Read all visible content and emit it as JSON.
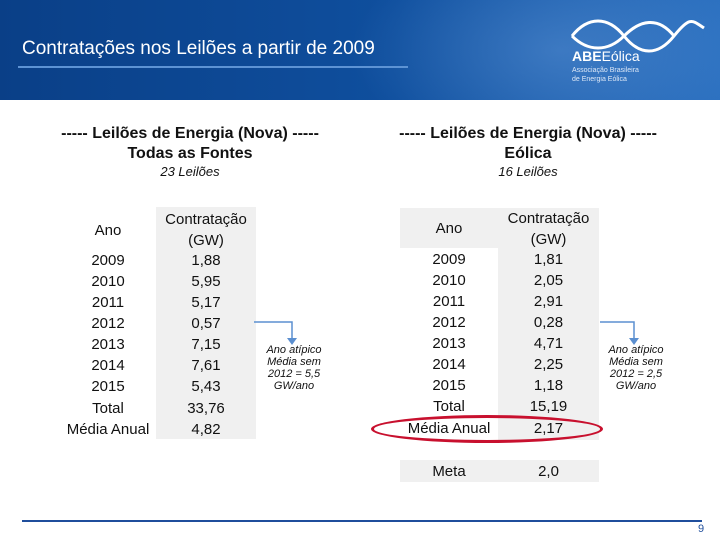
{
  "slide": {
    "title": "Contratações nos Leilões a partir de 2009",
    "page_number": "9"
  },
  "logo": {
    "name_bold": "ABE",
    "name_light": "Eólica",
    "subtitle_line1": "Associação Brasileira",
    "subtitle_line2": "de Energia Eólica"
  },
  "left_section": {
    "heading_line1": "----- Leilões de Energia (Nova) -----",
    "heading_line2": "Todas as Fontes",
    "subheading": "23 Leilões",
    "col_year": "Ano",
    "col_value_line1": "Contratação",
    "col_value_line2": "(GW)",
    "rows": [
      {
        "label": "2009",
        "value": "1,88"
      },
      {
        "label": "2010",
        "value": "5,95"
      },
      {
        "label": "2011",
        "value": "5,17"
      },
      {
        "label": "2012",
        "value": "0,57"
      },
      {
        "label": "2013",
        "value": "7,15"
      },
      {
        "label": "2014",
        "value": "7,61"
      },
      {
        "label": "2015",
        "value": "5,43"
      },
      {
        "label": "Total",
        "value": "33,76"
      },
      {
        "label": "Média Anual",
        "value": "4,82"
      }
    ],
    "note_line1": "Ano atípico",
    "note_line2": "Média sem",
    "note_line3": "2012 = 5,5",
    "note_line4": "GW/ano"
  },
  "right_section": {
    "heading_line1": "----- Leilões de Energia (Nova) -----",
    "heading_line2": "Eólica",
    "subheading": "16 Leilões",
    "col_year": "Ano",
    "col_value_line1": "Contratação",
    "col_value_line2": "(GW)",
    "rows": [
      {
        "label": "2009",
        "value": "1,81"
      },
      {
        "label": "2010",
        "value": "2,05"
      },
      {
        "label": "2011",
        "value": "2,91"
      },
      {
        "label": "2012",
        "value": "0,28"
      },
      {
        "label": "2013",
        "value": "4,71"
      },
      {
        "label": "2014",
        "value": "2,25"
      },
      {
        "label": "2015",
        "value": "1,18"
      },
      {
        "label": "Total",
        "value": "15,19"
      },
      {
        "label": "Média Anual",
        "value": "2,17"
      }
    ],
    "meta_label": "Meta",
    "meta_value": "2,0",
    "note_line1": "Ano atípico",
    "note_line2": "Média sem",
    "note_line3": "2012 = 2,5",
    "note_line4": "GW/ano"
  },
  "colors": {
    "header_blue": "#0f4f9e",
    "table_fill": "#f0f0f0",
    "highlight_red": "#c8102e",
    "note_arrow": "#5b8fd0"
  }
}
